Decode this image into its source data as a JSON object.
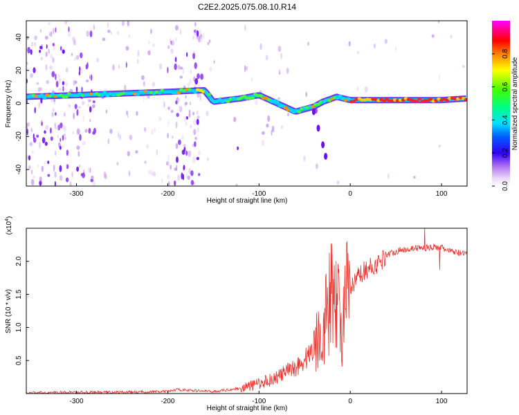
{
  "title": "C2E2.2025.075.08.10.R14",
  "chart_data": [
    {
      "type": "heatmap",
      "xlabel": "Height of straight line (km)",
      "ylabel": "Frequency (Hz)",
      "xlim": [
        -355,
        128
      ],
      "ylim": [
        -50,
        50
      ],
      "xticks": [
        -300,
        -200,
        -100,
        0,
        100
      ],
      "yticks": [
        -40,
        -20,
        0,
        20,
        40
      ],
      "colorbar": {
        "label": "Normalized spectral amplitude",
        "range": [
          0,
          1
        ],
        "ticks": [
          0.0,
          0.2,
          0.4,
          0.6,
          0.8
        ],
        "colors": [
          "#ffffff",
          "#d8b8f0",
          "#8a2be2",
          "#4b00ff",
          "#0000ff",
          "#00bfff",
          "#00ffff",
          "#00ff80",
          "#00ff00",
          "#ffff00",
          "#ff8000",
          "#ff0000",
          "#ff00ff"
        ]
      },
      "ridge_points": [
        {
          "x": -355,
          "y": 4
        },
        {
          "x": -300,
          "y": 5
        },
        {
          "x": -250,
          "y": 6
        },
        {
          "x": -200,
          "y": 7
        },
        {
          "x": -160,
          "y": 8
        },
        {
          "x": -150,
          "y": 1
        },
        {
          "x": -120,
          "y": 3
        },
        {
          "x": -100,
          "y": 5
        },
        {
          "x": -80,
          "y": 0
        },
        {
          "x": -60,
          "y": -5
        },
        {
          "x": -40,
          "y": -2
        },
        {
          "x": -30,
          "y": 1
        },
        {
          "x": -15,
          "y": 4
        },
        {
          "x": 0,
          "y": 2
        },
        {
          "x": 50,
          "y": 2
        },
        {
          "x": 100,
          "y": 2
        },
        {
          "x": 128,
          "y": 3
        }
      ],
      "branch_points": [
        {
          "x": -40,
          "y": -5
        },
        {
          "x": -35,
          "y": -15
        },
        {
          "x": -30,
          "y": -25
        },
        {
          "x": -27,
          "y": -32
        }
      ]
    },
    {
      "type": "line",
      "xlabel": "Height of straight line (km)",
      "ylabel": "SNR (10 * v/v)",
      "y_multiplier": "(x10",
      "y_multiplier_exp": "4",
      "y_multiplier_close": ")",
      "xlim": [
        -355,
        128
      ],
      "ylim": [
        0,
        2.5
      ],
      "xticks": [
        -300,
        -200,
        -100,
        0,
        100
      ],
      "yticks": [
        0.5,
        1.0,
        1.5,
        2.0
      ],
      "series": [
        {
          "color": "#e8302a",
          "x": [
            -355,
            -300,
            -250,
            -200,
            -190,
            -150,
            -120,
            -100,
            -80,
            -60,
            -50,
            -40,
            -30,
            -20,
            -15,
            -10,
            -5,
            0,
            10,
            20,
            30,
            40,
            50,
            60,
            70,
            80,
            90,
            100,
            110,
            128
          ],
          "y": [
            0.01,
            0.02,
            0.02,
            0.03,
            0.06,
            0.03,
            0.08,
            0.15,
            0.25,
            0.4,
            0.5,
            0.7,
            1.0,
            1.5,
            1.6,
            0.9,
            1.4,
            1.55,
            1.8,
            1.9,
            1.95,
            2.1,
            2.15,
            2.18,
            2.2,
            2.2,
            2.22,
            2.2,
            2.15,
            2.1
          ]
        }
      ]
    }
  ]
}
